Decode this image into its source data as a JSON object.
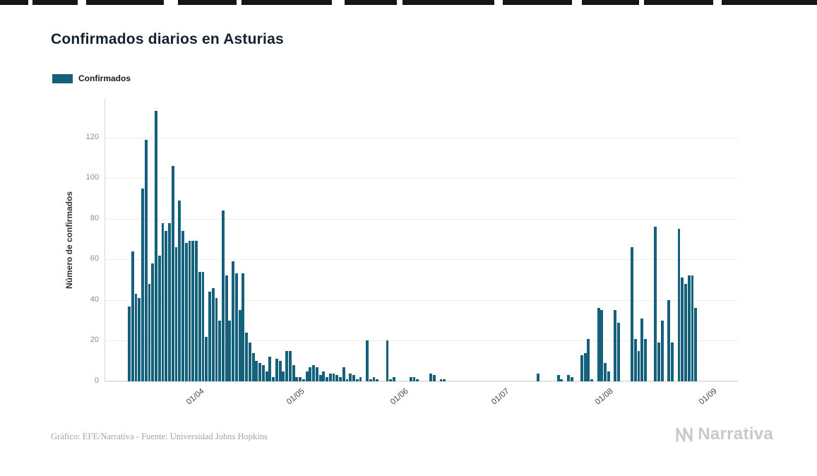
{
  "page": {
    "title": "Confirmados diarios en Asturias",
    "credit": "Gráfico: EFE/Narrativa - Fuente: Universidad Johns Hopkins",
    "brand": "Narrativa"
  },
  "legend": {
    "label": "Confirmados"
  },
  "colors": {
    "bar": "#15607b",
    "grid": "#ededed",
    "axis": "#d6d6d6",
    "brand_gray": "#c9c9c9"
  },
  "chart_data": {
    "type": "bar",
    "title": "Confirmados diarios en Asturias",
    "series_name": "Confirmados",
    "ylabel": "Número de confirmados",
    "yticks": [
      0,
      20,
      40,
      60,
      80,
      100,
      120
    ],
    "ylim": [
      0,
      139
    ],
    "grid": true,
    "legend_position": "top-left",
    "x_unit": "day",
    "xticks": [
      {
        "label": "01/04",
        "index": 17
      },
      {
        "label": "01/05",
        "index": 47
      },
      {
        "label": "01/06",
        "index": 78
      },
      {
        "label": "01/07",
        "index": 108
      },
      {
        "label": "01/08",
        "index": 139
      },
      {
        "label": "01/09",
        "index": 170
      }
    ],
    "values": [
      37,
      64,
      43,
      41,
      95,
      119,
      48,
      58,
      133,
      62,
      78,
      74,
      78,
      106,
      66,
      89,
      74,
      68,
      69,
      69,
      69,
      54,
      54,
      22,
      44,
      46,
      41,
      30,
      84,
      52,
      30,
      59,
      53,
      35,
      53,
      24,
      19,
      14,
      10,
      9,
      8,
      5,
      12,
      2,
      11,
      10,
      5,
      15,
      15,
      8,
      2,
      2,
      1,
      5,
      7,
      8,
      7,
      3,
      5,
      2,
      4,
      4,
      3,
      2,
      7,
      1,
      4,
      3,
      1,
      2,
      0,
      20,
      1,
      2,
      1,
      0,
      0,
      20,
      1,
      2,
      0,
      0,
      0,
      0,
      2,
      2,
      1,
      0,
      0,
      0,
      4,
      3,
      0,
      1,
      1,
      0,
      0,
      0,
      0,
      0,
      0,
      0,
      0,
      0,
      0,
      0,
      0,
      0,
      0,
      0,
      0,
      0,
      0,
      0,
      0,
      0,
      0,
      0,
      0,
      0,
      0,
      0,
      4,
      0,
      0,
      0,
      0,
      0,
      3,
      1,
      0,
      3,
      2,
      0,
      0,
      13,
      14,
      21,
      1,
      0,
      36,
      35,
      9,
      5,
      0,
      35,
      29,
      0,
      0,
      0,
      66,
      21,
      15,
      31,
      21,
      0,
      0,
      76,
      19,
      30,
      0,
      40,
      19,
      0,
      75,
      51,
      48,
      52,
      52,
      36,
      0
    ]
  }
}
